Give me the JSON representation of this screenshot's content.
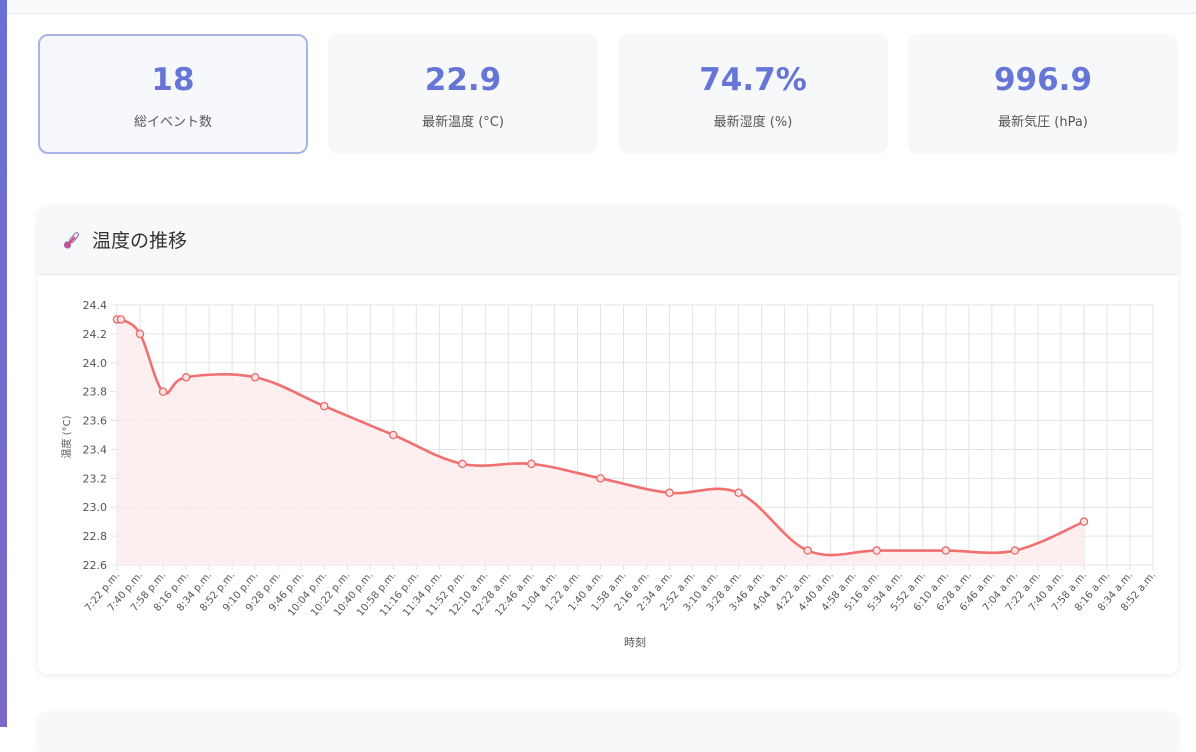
{
  "stats": [
    {
      "value": "18",
      "label": "総イベント数"
    },
    {
      "value": "22.9",
      "label": "最新温度 (°C)"
    },
    {
      "value": "74.7%",
      "label": "最新湿度 (%)"
    },
    {
      "value": "996.9",
      "label": "最新気圧 (hPa)"
    }
  ],
  "temperature_chart": {
    "icon": "thermometer-icon",
    "title": "温度の推移"
  },
  "colors": {
    "accent": "#6676d6",
    "line": "#f07070",
    "fill": "#fdecec"
  },
  "chart_data": {
    "type": "line",
    "title": "温度の推移",
    "xlabel": "時刻",
    "ylabel": "温度 (°C)",
    "ylim": [
      22.6,
      24.4
    ],
    "y_ticks": [
      22.6,
      22.8,
      23.0,
      23.2,
      23.4,
      23.6,
      23.8,
      24.0,
      24.2,
      24.4
    ],
    "grid": true,
    "x_ticks": [
      "7:22 p.m.",
      "7:40 p.m.",
      "7:58 p.m.",
      "8:16 p.m.",
      "8:34 p.m.",
      "8:52 p.m.",
      "9:10 p.m.",
      "9:28 p.m.",
      "9:46 p.m.",
      "10:04 p.m.",
      "10:22 p.m.",
      "10:40 p.m.",
      "10:58 p.m.",
      "11:16 p.m.",
      "11:34 p.m.",
      "11:52 p.m.",
      "12:10 a.m.",
      "12:28 a.m.",
      "12:46 a.m.",
      "1:04 a.m.",
      "1:22 a.m.",
      "1:40 a.m.",
      "1:58 a.m.",
      "2:16 a.m.",
      "2:34 a.m.",
      "2:52 a.m.",
      "3:10 a.m.",
      "3:28 a.m.",
      "3:46 a.m.",
      "4:04 a.m.",
      "4:22 a.m.",
      "4:40 a.m.",
      "4:58 a.m.",
      "5:16 a.m.",
      "5:34 a.m.",
      "5:52 a.m.",
      "6:10 a.m.",
      "6:28 a.m.",
      "6:46 a.m.",
      "7:04 a.m.",
      "7:22 a.m.",
      "7:40 a.m.",
      "7:58 a.m.",
      "8:16 a.m.",
      "8:34 a.m.",
      "8:52 a.m."
    ],
    "series": [
      {
        "points": [
          {
            "x": "7:22 p.m.",
            "y": 24.3
          },
          {
            "x": "7:22 p.m.",
            "y": 24.3
          },
          {
            "x": "7:40 p.m.",
            "y": 24.2
          },
          {
            "x": "7:58 p.m.",
            "y": 23.8
          },
          {
            "x": "8:16 p.m.",
            "y": 23.9
          },
          {
            "x": "9:10 p.m.",
            "y": 23.9
          },
          {
            "x": "10:04 p.m.",
            "y": 23.7
          },
          {
            "x": "10:58 p.m.",
            "y": 23.5
          },
          {
            "x": "11:52 p.m.",
            "y": 23.3
          },
          {
            "x": "12:46 a.m.",
            "y": 23.3
          },
          {
            "x": "1:40 a.m.",
            "y": 23.2
          },
          {
            "x": "2:34 a.m.",
            "y": 23.1
          },
          {
            "x": "3:28 a.m.",
            "y": 23.1
          },
          {
            "x": "4:22 a.m.",
            "y": 22.7
          },
          {
            "x": "5:16 a.m.",
            "y": 22.7
          },
          {
            "x": "6:10 a.m.",
            "y": 22.7
          },
          {
            "x": "7:04 a.m.",
            "y": 22.7
          },
          {
            "x": "7:58 a.m.",
            "y": 22.9
          }
        ]
      }
    ]
  }
}
